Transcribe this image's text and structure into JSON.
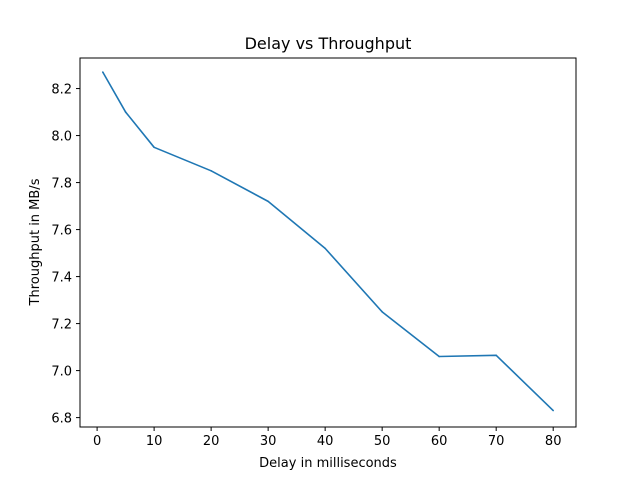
{
  "chart_data": {
    "type": "line",
    "title": "Delay vs Throughput",
    "xlabel": "Delay in milliseconds",
    "ylabel": "Throughput in MB/s",
    "xlim": [
      -3.0,
      84.0
    ],
    "ylim": [
      6.76,
      8.33
    ],
    "xticks": [
      0,
      10,
      20,
      30,
      40,
      50,
      60,
      70,
      80
    ],
    "yticks": [
      6.8,
      7.0,
      7.2,
      7.4,
      7.6,
      7.8,
      8.0,
      8.2
    ],
    "grid": false,
    "series": [
      {
        "color": "#1f77b4",
        "x": [
          1,
          5,
          10,
          20,
          30,
          40,
          50,
          60,
          70,
          80
        ],
        "y": [
          8.27,
          8.1,
          7.95,
          7.85,
          7.72,
          7.52,
          7.25,
          7.06,
          7.065,
          6.83
        ]
      }
    ]
  }
}
